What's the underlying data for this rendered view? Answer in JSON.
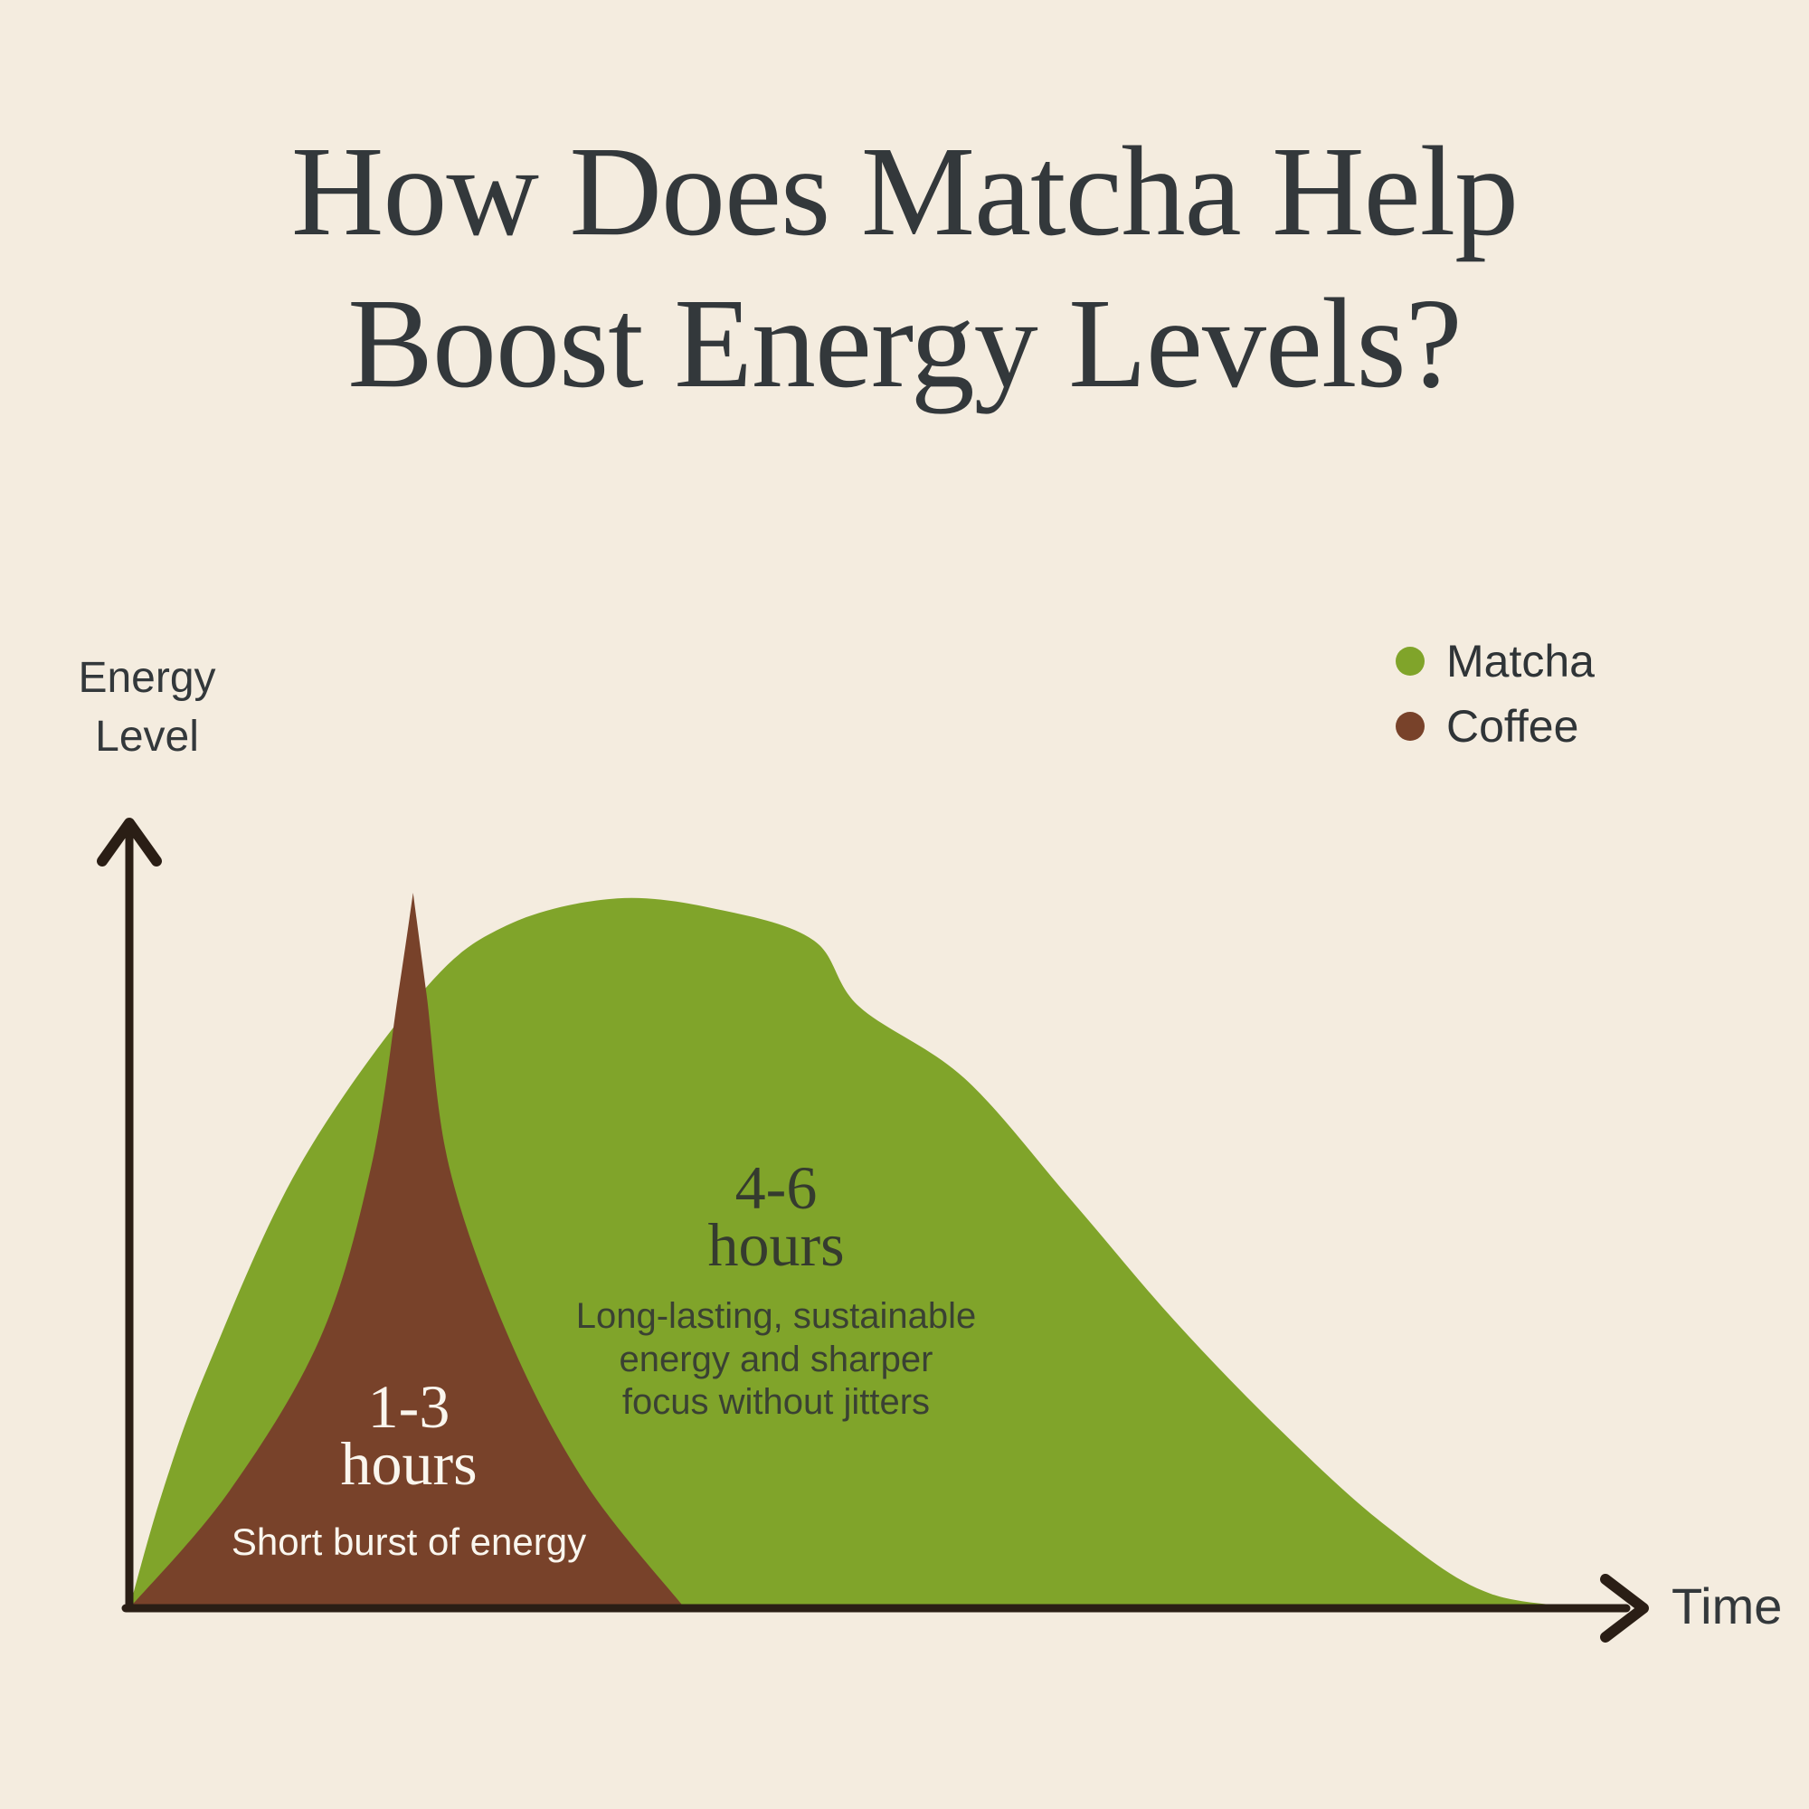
{
  "title": {
    "line1": "How Does Matcha Help",
    "line2": "Boost Energy Levels?"
  },
  "axes": {
    "y_label_line1": "Energy",
    "y_label_line2": "Level",
    "x_label": "Time"
  },
  "legend": [
    {
      "label": "Matcha",
      "color": "#80a42a"
    },
    {
      "label": "Coffee",
      "color": "#78422a"
    }
  ],
  "annotations": {
    "matcha": {
      "duration_line1": "4-6",
      "duration_line2": "hours",
      "desc_line1": "Long-lasting, sustainable",
      "desc_line2": "energy and sharper",
      "desc_line3": "focus without jitters"
    },
    "coffee": {
      "duration_line1": "1-3",
      "duration_line2": "hours",
      "desc_line1": "Short burst of energy"
    }
  },
  "colors": {
    "background": "#f4ecdf",
    "axis": "#2a1e15",
    "heading_text": "#33383b",
    "matcha_green": "#80a42a",
    "coffee_brown": "#78422a",
    "white_text": "#faf6ee"
  },
  "chart_data": {
    "type": "area",
    "title": "How Does Matcha Help Boost Energy Levels?",
    "xlabel": "Time",
    "ylabel": "Energy Level",
    "grid": false,
    "legend_position": "top-right",
    "axis_ticks": "none (qualitative axes with arrowheads)",
    "x_units": "fraction of time axis (0 = origin, 1 = axis end)",
    "y_units": "fraction of max energy level",
    "series": [
      {
        "name": "Matcha",
        "color": "#80a42a",
        "annotation": "4-6 hours — Long-lasting, sustainable energy and sharper focus without jitters",
        "peak": [
          0.325,
          0.992
        ],
        "segments": [
          [
            [
              0,
              0
            ],
            [
              0.022,
              0.162
            ],
            [
              0.052,
              0.336
            ],
            [
              0.113,
              0.617
            ],
            [
              0.195,
              0.861
            ],
            [
              0.251,
              0.954
            ],
            [
              0.325,
              0.992
            ],
            [
              0.396,
              0.975
            ],
            [
              0.456,
              0.933
            ],
            [
              0.486,
              0.841
            ],
            [
              0.556,
              0.741
            ],
            [
              0.627,
              0.571
            ],
            [
              0.696,
              0.402
            ],
            [
              0.767,
              0.248
            ],
            [
              0.837,
              0.115
            ],
            [
              0.907,
              0.02
            ],
            [
              0.992,
              0
            ]
          ]
        ]
      },
      {
        "name": "Coffee",
        "color": "#78422a",
        "annotation": "1-3 hours — Short burst of energy",
        "peak": [
          0.189,
          1.0
        ],
        "segments": [
          [
            [
              0,
              0
            ],
            [
              0.066,
              0.162
            ],
            [
              0.127,
              0.377
            ],
            [
              0.161,
              0.617
            ],
            [
              0.179,
              0.857
            ],
            [
              0.189,
              1.0
            ]
          ],
          [
            [
              0.189,
              1.0
            ],
            [
              0.198,
              0.857
            ],
            [
              0.213,
              0.617
            ],
            [
              0.253,
              0.377
            ],
            [
              0.304,
              0.174
            ],
            [
              0.37,
              0
            ]
          ]
        ]
      }
    ]
  }
}
